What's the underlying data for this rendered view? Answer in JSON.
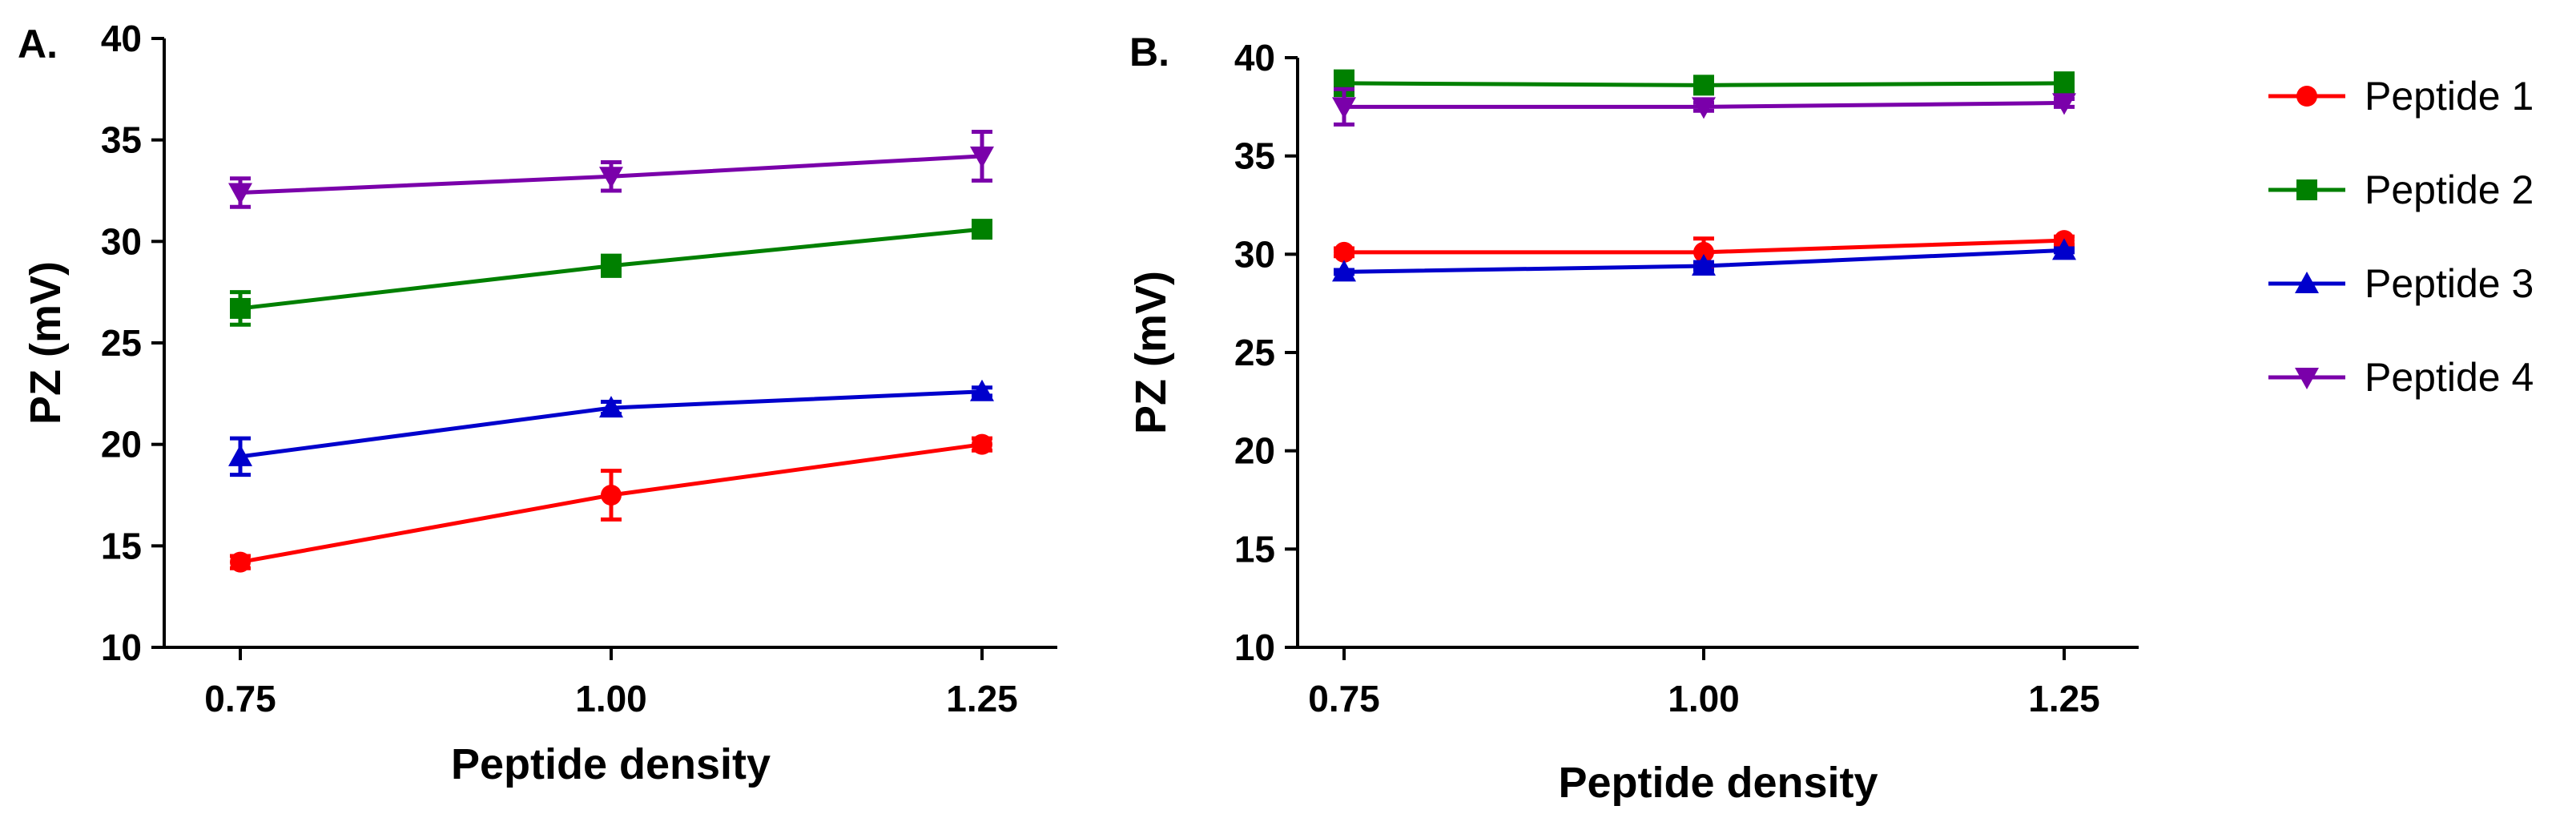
{
  "chart_data": [
    {
      "panel": "A.",
      "type": "line",
      "xlabel": "Peptide density",
      "ylabel": "PZ (mV)",
      "x": [
        0.75,
        1.0,
        1.25
      ],
      "x_tick_labels": [
        "0.75",
        "1.00",
        "1.25"
      ],
      "ylim": [
        10,
        40
      ],
      "y_ticks": [
        10,
        15,
        20,
        25,
        30,
        35,
        40
      ],
      "series": [
        {
          "name": "Peptide 1",
          "color": "#ff0000",
          "marker": "circle",
          "values": [
            14.2,
            17.5,
            20.0
          ],
          "errors": [
            0.3,
            1.2,
            0.3
          ]
        },
        {
          "name": "Peptide 2",
          "color": "#008000",
          "marker": "square",
          "values": [
            26.7,
            28.8,
            30.6
          ],
          "errors": [
            0.8,
            0.5,
            0.3
          ]
        },
        {
          "name": "Peptide 3",
          "color": "#0000cc",
          "marker": "triangle-up",
          "values": [
            19.4,
            21.8,
            22.6
          ],
          "errors": [
            0.9,
            0.3,
            0.2
          ]
        },
        {
          "name": "Peptide 4",
          "color": "#7a00aa",
          "marker": "triangle-down",
          "values": [
            32.4,
            33.2,
            34.2
          ],
          "errors": [
            0.7,
            0.7,
            1.2
          ]
        }
      ]
    },
    {
      "panel": "B.",
      "type": "line",
      "xlabel": "Peptide density",
      "ylabel": "PZ (mV)",
      "x": [
        0.75,
        1.0,
        1.25
      ],
      "x_tick_labels": [
        "0.75",
        "1.00",
        "1.25"
      ],
      "ylim": [
        10,
        40
      ],
      "y_ticks": [
        10,
        15,
        20,
        25,
        30,
        35,
        40
      ],
      "series": [
        {
          "name": "Peptide 1",
          "color": "#ff0000",
          "marker": "circle",
          "values": [
            30.1,
            30.1,
            30.7
          ],
          "errors": [
            0.2,
            0.7,
            0.2
          ]
        },
        {
          "name": "Peptide 2",
          "color": "#008000",
          "marker": "square",
          "values": [
            38.7,
            38.6,
            38.7
          ],
          "errors": [
            0.6,
            0.3,
            0.5
          ]
        },
        {
          "name": "Peptide 3",
          "color": "#0000cc",
          "marker": "triangle-up",
          "values": [
            29.1,
            29.4,
            30.2
          ],
          "errors": [
            0.1,
            0.2,
            0.1
          ]
        },
        {
          "name": "Peptide 4",
          "color": "#7a00aa",
          "marker": "triangle-down",
          "values": [
            37.5,
            37.5,
            37.7
          ],
          "errors": [
            0.9,
            0.2,
            0.2
          ]
        }
      ]
    }
  ],
  "legend": {
    "position": "right",
    "items": [
      {
        "label": "Peptide 1",
        "color": "#ff0000",
        "marker": "circle"
      },
      {
        "label": "Peptide 2",
        "color": "#008000",
        "marker": "square"
      },
      {
        "label": "Peptide 3",
        "color": "#0000cc",
        "marker": "triangle-up"
      },
      {
        "label": "Peptide 4",
        "color": "#7a00aa",
        "marker": "triangle-down"
      }
    ]
  }
}
